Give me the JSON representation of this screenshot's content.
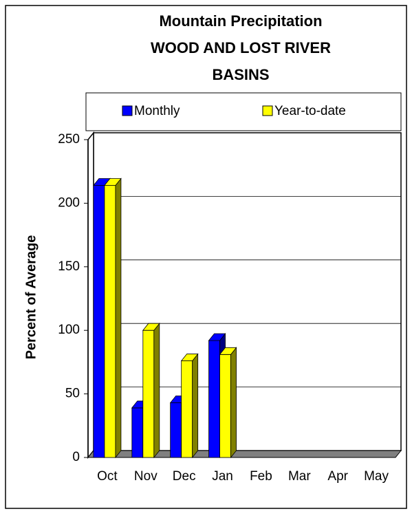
{
  "chart_data": {
    "type": "bar3d",
    "title": [
      "Mountain Precipitation",
      "WOOD AND LOST RIVER",
      "BASINS"
    ],
    "y_label": "Percent of Average",
    "categories": [
      "Oct",
      "Nov",
      "Dec",
      "Jan",
      "Feb",
      "Mar",
      "Apr",
      "May"
    ],
    "series": [
      {
        "name": "Monthly",
        "color": "#0000ff",
        "side": "#000080",
        "values": [
          214,
          39,
          43,
          92,
          null,
          null,
          null,
          null
        ]
      },
      {
        "name": "Year-to-date",
        "color": "#ffff00",
        "side": "#808000",
        "values": [
          214,
          100,
          76,
          81,
          null,
          null,
          null,
          null
        ]
      }
    ],
    "ylim": [
      0,
      250
    ],
    "yticks": [
      0,
      50,
      100,
      150,
      200,
      250
    ],
    "grid": true
  }
}
